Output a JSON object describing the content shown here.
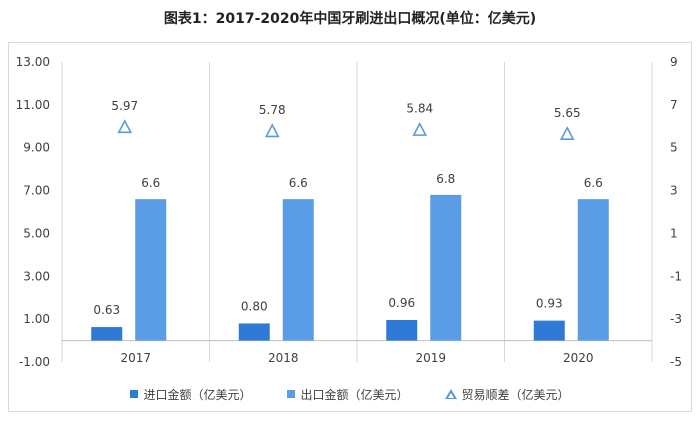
{
  "title": "图表1：2017-2020年中国牙刷进出口概况(单位：亿美元)",
  "colors": {
    "import": "#2f7ad6",
    "export": "#5b9ce6",
    "balance": "#5b9bd5"
  },
  "chart_data": {
    "type": "bar",
    "categories": [
      "2017",
      "2018",
      "2019",
      "2020"
    ],
    "series": [
      {
        "name": "进口金额（亿美元）",
        "kind": "bar",
        "axis": "left",
        "values": [
          0.63,
          0.8,
          0.96,
          0.93
        ],
        "labels": [
          "0.63",
          "0.80",
          "0.96",
          "0.93"
        ]
      },
      {
        "name": "出口金额（亿美元）",
        "kind": "bar",
        "axis": "left",
        "values": [
          6.6,
          6.6,
          6.8,
          6.6
        ],
        "labels": [
          "6.6",
          "6.6",
          "6.8",
          "6.6"
        ]
      },
      {
        "name": "贸易顺差（亿美元）",
        "kind": "marker-triangle",
        "axis": "right",
        "values": [
          5.97,
          5.78,
          5.84,
          5.65
        ],
        "labels": [
          "5.97",
          "5.78",
          "5.84",
          "5.65"
        ]
      }
    ],
    "y_left": {
      "min": -1,
      "max": 13,
      "ticks": [
        "13.00",
        "11.00",
        "9.00",
        "7.00",
        "5.00",
        "3.00",
        "1.00",
        "-1.00"
      ]
    },
    "y_right": {
      "min": -5,
      "max": 9,
      "ticks": [
        "9",
        "7",
        "5",
        "3",
        "1",
        "-1",
        "-3",
        "-5"
      ]
    },
    "legend_position": "bottom",
    "grid": false
  }
}
